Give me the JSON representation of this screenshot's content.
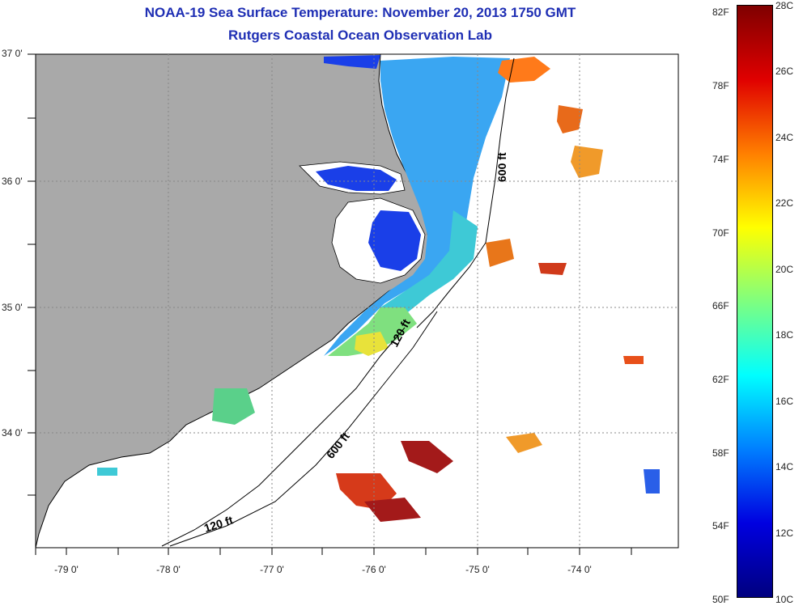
{
  "title": {
    "line1": "NOAA-19 Sea Surface Temperature:  November 20, 2013 1750 GMT",
    "line2": "Rutgers Coastal Ocean Observation Lab"
  },
  "map": {
    "lat_labels": [
      "37 0'",
      "36 0'",
      "35 0'",
      "34 0'"
    ],
    "lon_labels": [
      "-79 0'",
      "-78 0'",
      "-77 0'",
      "-76 0'",
      "-75 0'",
      "-74 0'"
    ],
    "contours": [
      "600 ft",
      "120 ft",
      "600 ft",
      "120 ft"
    ],
    "colors": {
      "land": "#a9a9a9",
      "cloud": "#ffffff",
      "coast": "#000000",
      "grid": "#888888"
    }
  },
  "colorbar": {
    "f_labels": [
      "82F",
      "78F",
      "74F",
      "70F",
      "66F",
      "62F",
      "58F",
      "54F",
      "50F"
    ],
    "c_labels": [
      "28C",
      "26C",
      "24C",
      "22C",
      "20C",
      "18C",
      "16C",
      "14C",
      "12C",
      "10C"
    ],
    "stops": [
      "#7f0000",
      "#e00000",
      "#ff7f00",
      "#ffff00",
      "#7fff7f",
      "#00ffff",
      "#007fff",
      "#0000e0",
      "#00007f"
    ]
  }
}
